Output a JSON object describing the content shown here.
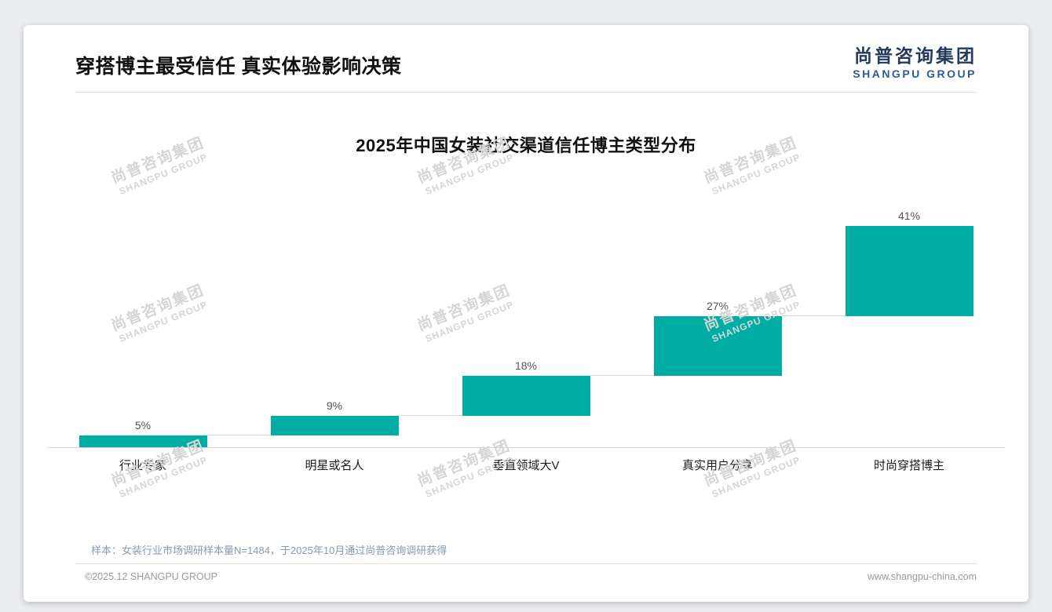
{
  "header": {
    "title": "穿搭博主最受信任 真实体验影响决策",
    "logo_cn": "尚普咨询集团",
    "logo_en": "SHANGPU GROUP"
  },
  "watermark": {
    "line1": "尚普咨询集团",
    "line2": "SHANGPU GROUP"
  },
  "chart_data": {
    "type": "bar",
    "subtype": "waterfall-stairs",
    "title": "2025年中国女装社交渠道信任博主类型分布",
    "categories": [
      "行业专家",
      "明星或名人",
      "垂直领域大V",
      "真实用户分享",
      "时尚穿搭博主"
    ],
    "values": [
      5,
      9,
      18,
      27,
      41
    ],
    "value_labels": [
      "5%",
      "9%",
      "18%",
      "27%",
      "41%"
    ],
    "cumulative_start": [
      0,
      5,
      14,
      32,
      59
    ],
    "unit": "%",
    "ylim": [
      0,
      100
    ],
    "grid": "off",
    "legend": "none",
    "bar_color": "#00ada3",
    "connector_color": "#d9d9d9",
    "baseline_color": "#d6d6d6",
    "value_label_color": "#555555"
  },
  "footer": {
    "note": "样本：女装行业市场调研样本量N=1484，于2025年10月通过尚普咨询调研获得",
    "copyright": "©2025.12 SHANGPU GROUP",
    "website": "www.shangpu-china.com"
  }
}
